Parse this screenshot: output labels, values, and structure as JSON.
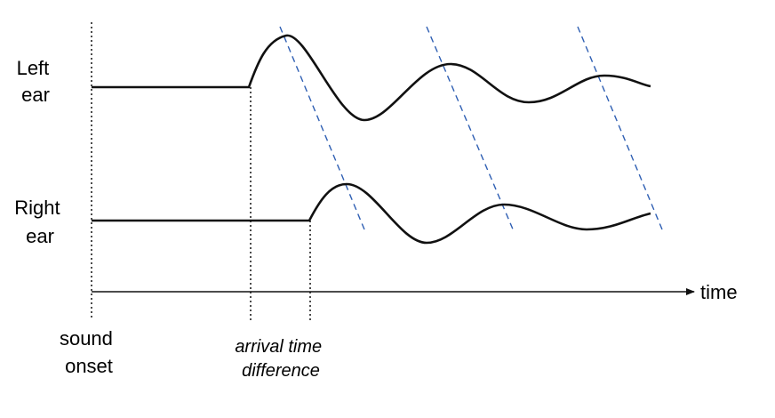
{
  "labels": {
    "left_ear": [
      "Left",
      "ear"
    ],
    "right_ear": [
      "Right",
      "ear"
    ],
    "time_axis": "time",
    "sound_onset": [
      "sound",
      "onset"
    ],
    "arrival_time_difference": [
      "arrival time",
      "difference"
    ]
  }
}
